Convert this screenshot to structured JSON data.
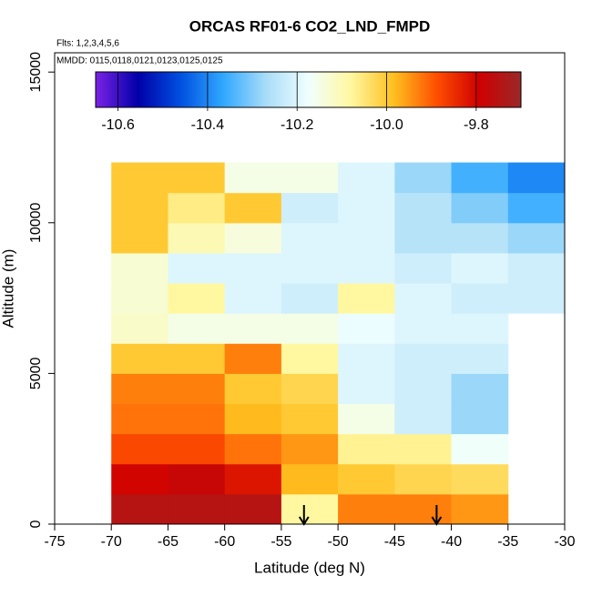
{
  "chart_data": {
    "type": "heatmap",
    "title": "ORCAS RF01-6 CO2_LND_FMPD",
    "subtitle": "Flts: 1,2,3,4,5,6",
    "annotation": "MMDD: 0115,0118,0121,0123,0125,0125",
    "x_label": "Latitude (deg N)",
    "y_label": "Altitude (m)",
    "xlim": [
      -75,
      -30
    ],
    "xticks": [
      -75,
      -70,
      -65,
      -60,
      -55,
      -50,
      -45,
      -40,
      -35,
      -30
    ],
    "ylim": [
      0,
      15640
    ],
    "yticks": [
      0,
      5000,
      10000,
      15000
    ],
    "x_edges": [
      -70,
      -65,
      -60,
      -55,
      -50,
      -45,
      -40,
      -35,
      -30
    ],
    "y_edges": [
      0,
      1000,
      2000,
      3000,
      4000,
      5000,
      6000,
      7000,
      8000,
      9000,
      10000,
      11000,
      12000
    ],
    "z": [
      [
        -9.75,
        -9.75,
        -9.75,
        -10.08,
        -9.93,
        -9.93,
        -9.95,
        null
      ],
      [
        -9.8,
        -9.78,
        -9.82,
        -9.98,
        -10.0,
        -10.02,
        -10.03,
        null
      ],
      [
        -9.88,
        -9.88,
        -9.92,
        -9.95,
        -10.07,
        -10.07,
        -10.17,
        null
      ],
      [
        -9.92,
        -9.92,
        -9.98,
        -10.0,
        -10.15,
        -10.22,
        -10.28,
        null
      ],
      [
        -9.93,
        -9.93,
        -10.0,
        -10.02,
        -10.2,
        -10.22,
        -10.28,
        null
      ],
      [
        -10.0,
        -10.0,
        -9.93,
        -10.08,
        -10.2,
        -10.22,
        -10.22,
        null
      ],
      [
        -10.12,
        -10.15,
        -10.15,
        -10.15,
        -10.18,
        -10.2,
        -10.2,
        null
      ],
      [
        -10.13,
        -10.08,
        -10.2,
        -10.22,
        -10.08,
        -10.2,
        -10.22,
        -10.22
      ],
      [
        -10.13,
        -10.2,
        -10.2,
        -10.2,
        -10.2,
        -10.22,
        -10.2,
        -10.22
      ],
      [
        -10.0,
        -10.1,
        -10.14,
        -10.2,
        -10.2,
        -10.25,
        -10.25,
        -10.28
      ],
      [
        -10.0,
        -10.06,
        -10.0,
        -10.22,
        -10.2,
        -10.25,
        -10.3,
        -10.35
      ],
      [
        -10.0,
        -10.0,
        -10.15,
        -10.15,
        -10.2,
        -10.28,
        -10.35,
        -10.4
      ]
    ],
    "clim": [
      -10.65,
      -9.7
    ],
    "cticks": [
      -10.6,
      -10.4,
      -10.2,
      {
        "value": -10,
        "label": "-10.0"
      },
      -9.8
    ],
    "colormap": [
      "#7b22e6",
      "#0000a8",
      "#0050e0",
      "#30a8ff",
      "#a8dcf8",
      "#f0ffff",
      "#fff8a0",
      "#ffc020",
      "#ff5000",
      "#d00000",
      "#9a2828"
    ],
    "arrows_x": [
      -53,
      -41.3
    ]
  }
}
